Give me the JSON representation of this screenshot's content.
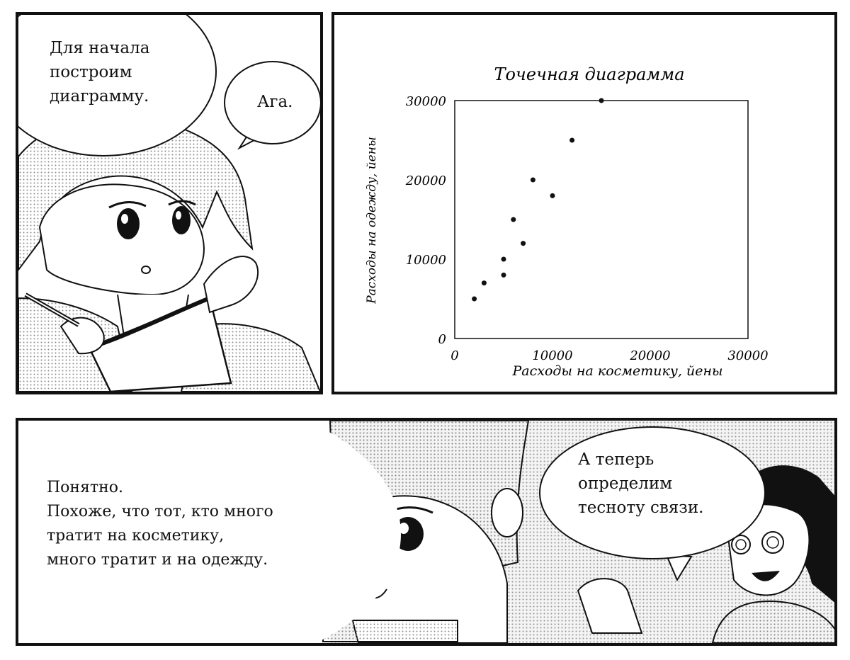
{
  "panel1": {
    "bubble_main": [
      "Для начала",
      "построим",
      "диаграмму."
    ],
    "bubble_reply": "Ага."
  },
  "panel2": {
    "chart_data": {
      "type": "scatter",
      "title": "Точечная диаграмма",
      "xlabel": "Расходы на косметику, йены",
      "ylabel": "Расходы на одежду, йены",
      "xlim": [
        0,
        30000
      ],
      "ylim": [
        0,
        30000
      ],
      "x_ticks": [
        "0",
        "10000",
        "20000",
        "30000"
      ],
      "y_ticks": [
        "0",
        "10000",
        "20000",
        "30000"
      ],
      "grid": false,
      "points": [
        {
          "x": 2000,
          "y": 5000
        },
        {
          "x": 3000,
          "y": 7000
        },
        {
          "x": 5000,
          "y": 8000
        },
        {
          "x": 5000,
          "y": 10000
        },
        {
          "x": 6000,
          "y": 15000
        },
        {
          "x": 7000,
          "y": 12000
        },
        {
          "x": 8000,
          "y": 20000
        },
        {
          "x": 10000,
          "y": 18000
        },
        {
          "x": 12000,
          "y": 25000
        },
        {
          "x": 15000,
          "y": 30000
        }
      ]
    }
  },
  "panel3": {
    "narration": [
      "Понятно.",
      "Похоже, что тот, кто много",
      "тратит на косметику,",
      "много тратит и на одежду."
    ],
    "bubble": [
      "А теперь",
      "определим",
      "тесноту связи."
    ]
  }
}
